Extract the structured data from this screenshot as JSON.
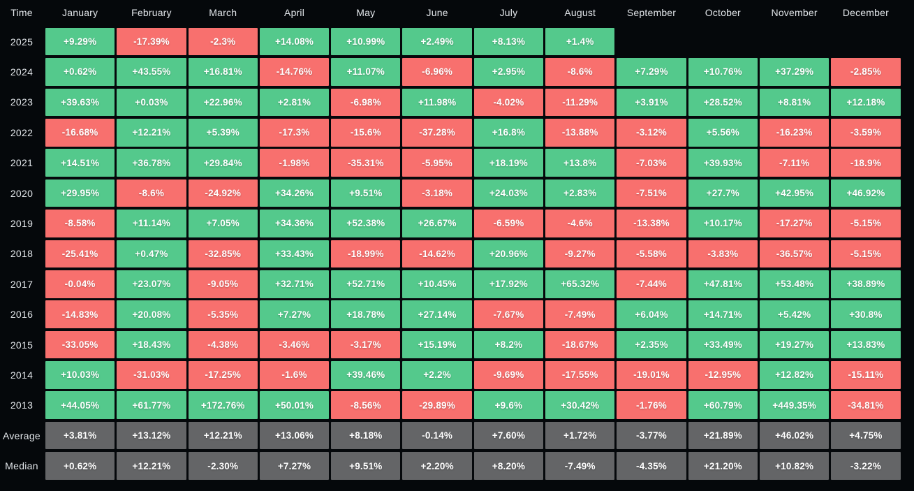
{
  "colors": {
    "positive": "#54c98c",
    "negative": "#f8706e",
    "summary": "#646567",
    "background": "#05080b",
    "header_text": "#e2e6ea",
    "cell_text": "#ffffff"
  },
  "chart_data": {
    "type": "heatmap",
    "title": "",
    "corner_label": "Time",
    "legend_position": "none",
    "grid": false,
    "color_encoding": "green = positive return, red = negative return, gray = summary row",
    "columns": [
      "January",
      "February",
      "March",
      "April",
      "May",
      "June",
      "July",
      "August",
      "September",
      "October",
      "November",
      "December"
    ],
    "rows": [
      {
        "label": "2025",
        "kind": "year",
        "values": [
          "+9.29%",
          "-17.39%",
          "-2.3%",
          "+14.08%",
          "+10.99%",
          "+2.49%",
          "+8.13%",
          "+1.4%",
          null,
          null,
          null,
          null
        ]
      },
      {
        "label": "2024",
        "kind": "year",
        "values": [
          "+0.62%",
          "+43.55%",
          "+16.81%",
          "-14.76%",
          "+11.07%",
          "-6.96%",
          "+2.95%",
          "-8.6%",
          "+7.29%",
          "+10.76%",
          "+37.29%",
          "-2.85%"
        ]
      },
      {
        "label": "2023",
        "kind": "year",
        "values": [
          "+39.63%",
          "+0.03%",
          "+22.96%",
          "+2.81%",
          "-6.98%",
          "+11.98%",
          "-4.02%",
          "-11.29%",
          "+3.91%",
          "+28.52%",
          "+8.81%",
          "+12.18%"
        ]
      },
      {
        "label": "2022",
        "kind": "year",
        "values": [
          "-16.68%",
          "+12.21%",
          "+5.39%",
          "-17.3%",
          "-15.6%",
          "-37.28%",
          "+16.8%",
          "-13.88%",
          "-3.12%",
          "+5.56%",
          "-16.23%",
          "-3.59%"
        ]
      },
      {
        "label": "2021",
        "kind": "year",
        "values": [
          "+14.51%",
          "+36.78%",
          "+29.84%",
          "-1.98%",
          "-35.31%",
          "-5.95%",
          "+18.19%",
          "+13.8%",
          "-7.03%",
          "+39.93%",
          "-7.11%",
          "-18.9%"
        ]
      },
      {
        "label": "2020",
        "kind": "year",
        "values": [
          "+29.95%",
          "-8.6%",
          "-24.92%",
          "+34.26%",
          "+9.51%",
          "-3.18%",
          "+24.03%",
          "+2.83%",
          "-7.51%",
          "+27.7%",
          "+42.95%",
          "+46.92%"
        ]
      },
      {
        "label": "2019",
        "kind": "year",
        "values": [
          "-8.58%",
          "+11.14%",
          "+7.05%",
          "+34.36%",
          "+52.38%",
          "+26.67%",
          "-6.59%",
          "-4.6%",
          "-13.38%",
          "+10.17%",
          "-17.27%",
          "-5.15%"
        ]
      },
      {
        "label": "2018",
        "kind": "year",
        "values": [
          "-25.41%",
          "+0.47%",
          "-32.85%",
          "+33.43%",
          "-18.99%",
          "-14.62%",
          "+20.96%",
          "-9.27%",
          "-5.58%",
          "-3.83%",
          "-36.57%",
          "-5.15%"
        ]
      },
      {
        "label": "2017",
        "kind": "year",
        "values": [
          "-0.04%",
          "+23.07%",
          "-9.05%",
          "+32.71%",
          "+52.71%",
          "+10.45%",
          "+17.92%",
          "+65.32%",
          "-7.44%",
          "+47.81%",
          "+53.48%",
          "+38.89%"
        ]
      },
      {
        "label": "2016",
        "kind": "year",
        "values": [
          "-14.83%",
          "+20.08%",
          "-5.35%",
          "+7.27%",
          "+18.78%",
          "+27.14%",
          "-7.67%",
          "-7.49%",
          "+6.04%",
          "+14.71%",
          "+5.42%",
          "+30.8%"
        ]
      },
      {
        "label": "2015",
        "kind": "year",
        "values": [
          "-33.05%",
          "+18.43%",
          "-4.38%",
          "-3.46%",
          "-3.17%",
          "+15.19%",
          "+8.2%",
          "-18.67%",
          "+2.35%",
          "+33.49%",
          "+19.27%",
          "+13.83%"
        ]
      },
      {
        "label": "2014",
        "kind": "year",
        "values": [
          "+10.03%",
          "-31.03%",
          "-17.25%",
          "-1.6%",
          "+39.46%",
          "+2.2%",
          "-9.69%",
          "-17.55%",
          "-19.01%",
          "-12.95%",
          "+12.82%",
          "-15.11%"
        ]
      },
      {
        "label": "2013",
        "kind": "year",
        "values": [
          "+44.05%",
          "+61.77%",
          "+172.76%",
          "+50.01%",
          "-8.56%",
          "-29.89%",
          "+9.6%",
          "+30.42%",
          "-1.76%",
          "+60.79%",
          "+449.35%",
          "-34.81%"
        ]
      },
      {
        "label": "Average",
        "kind": "summary",
        "values": [
          "+3.81%",
          "+13.12%",
          "+12.21%",
          "+13.06%",
          "+8.18%",
          "-0.14%",
          "+7.60%",
          "+1.72%",
          "-3.77%",
          "+21.89%",
          "+46.02%",
          "+4.75%"
        ]
      },
      {
        "label": "Median",
        "kind": "summary",
        "values": [
          "+0.62%",
          "+12.21%",
          "-2.30%",
          "+7.27%",
          "+9.51%",
          "+2.20%",
          "+8.20%",
          "-7.49%",
          "-4.35%",
          "+21.20%",
          "+10.82%",
          "-3.22%"
        ]
      }
    ]
  }
}
